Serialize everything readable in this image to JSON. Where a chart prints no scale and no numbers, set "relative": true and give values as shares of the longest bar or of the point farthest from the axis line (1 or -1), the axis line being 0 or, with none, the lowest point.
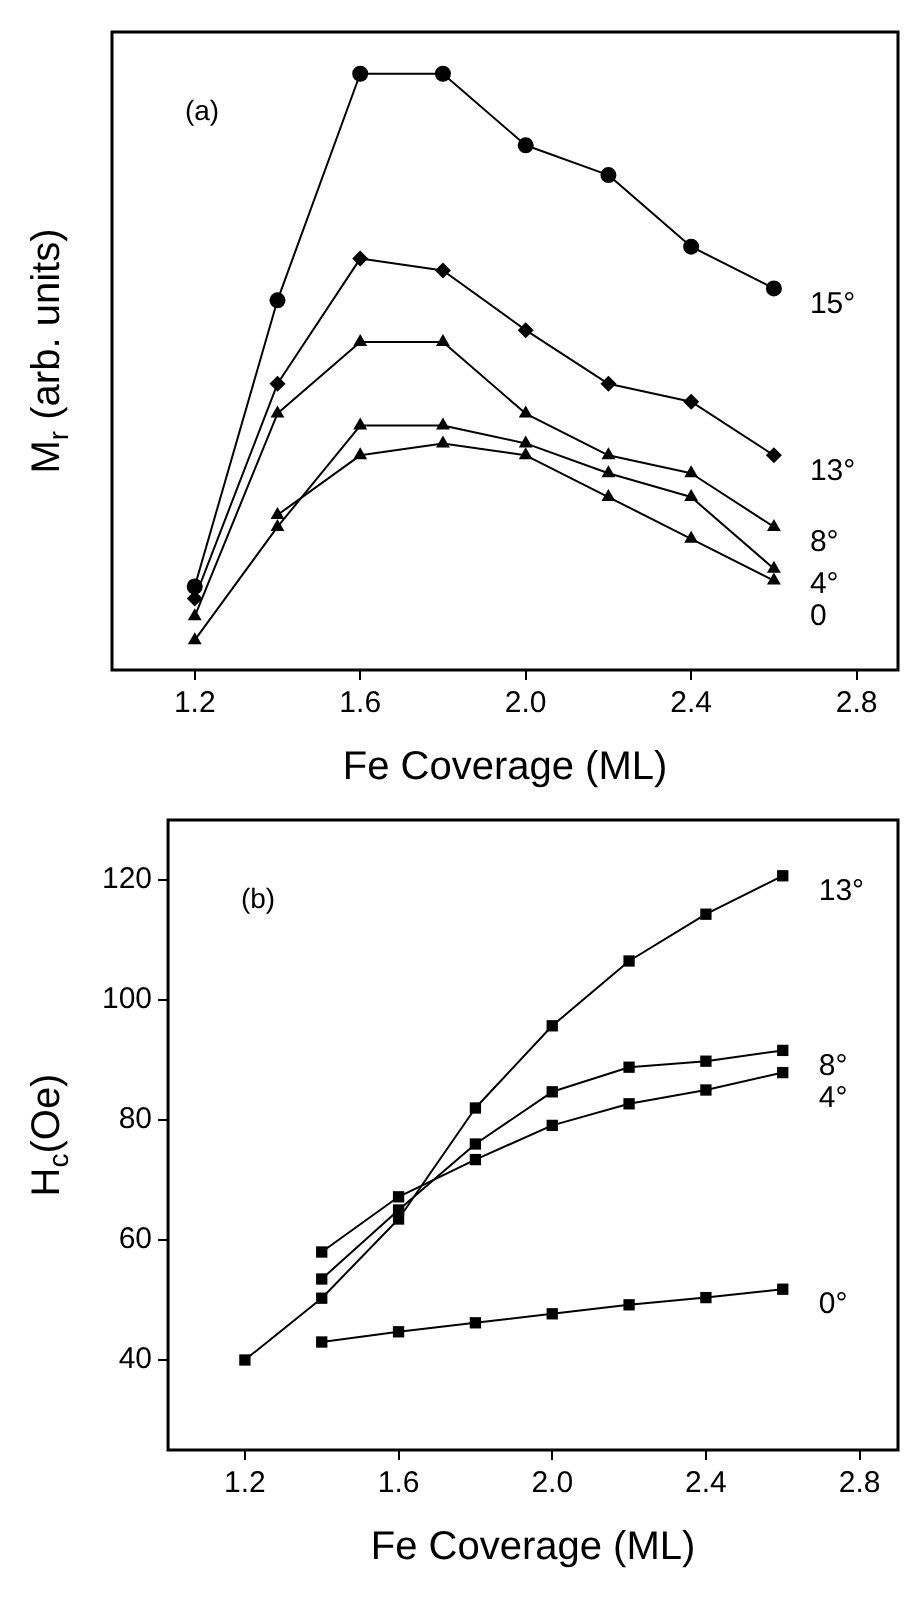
{
  "chart_data": [
    {
      "type": "line",
      "annotations": [
        "(a)"
      ],
      "xlabel": "Fe Coverage (ML)",
      "ylabel": "M$_{r}$ (arb. units)",
      "relative": true,
      "tick_labels": "x",
      "grid": false,
      "legend": false,
      "xlim": [
        1.0,
        2.9
      ],
      "xticks": [
        1.2,
        1.6,
        {
          "value": 2,
          "label": "2.0"
        },
        2.4,
        2.8
      ],
      "x": [
        1.2,
        1.4,
        1.6,
        1.8,
        2.0,
        2.2,
        2.4,
        2.6
      ],
      "series": [
        {
          "name": "15°",
          "color": "#000000",
          "marker": "circle",
          "values": [
            0.14,
            0.62,
            1,
            1,
            0.88,
            0.83,
            0.71,
            0.64
          ]
        },
        {
          "name": "13°",
          "color": "#000000",
          "marker": "diamond",
          "values": [
            0.12,
            0.48,
            0.69,
            0.67,
            0.57,
            0.48,
            0.45,
            0.36
          ]
        },
        {
          "name": "8°",
          "color": "#000000",
          "marker": "triangle",
          "values": [
            0.09,
            0.43,
            0.55,
            0.55,
            0.43,
            0.36,
            0.33,
            0.24
          ]
        },
        {
          "name": "4°",
          "color": "#000000",
          "marker": "triangle",
          "values": [
            0.05,
            0.24,
            0.41,
            0.41,
            0.38,
            0.33,
            0.29,
            0.17
          ]
        },
        {
          "name": "0",
          "color": "#000000",
          "marker": "triangle",
          "values": [
            null,
            0.26,
            0.36,
            0.38,
            0.36,
            0.29,
            0.22,
            0.15
          ]
        }
      ]
    },
    {
      "type": "line",
      "annotations": [
        "(b)"
      ],
      "xlabel": "Fe Coverage (ML)",
      "ylabel": "H$_{c}$(Oe)",
      "grid": false,
      "legend": false,
      "marker": "square",
      "xlim": [
        1.0,
        2.9
      ],
      "xticks": [
        1.2,
        1.6,
        {
          "value": 2,
          "label": "2.0"
        },
        2.4,
        2.8
      ],
      "ylim": [
        25,
        130
      ],
      "yticks": [
        40,
        60,
        80,
        100,
        120
      ],
      "series": [
        {
          "name": "13°",
          "color": "#000000",
          "x": [
            1.2,
            1.4,
            1.6,
            1.8,
            2.0,
            2.2,
            2.4,
            2.6
          ],
          "values": [
            40,
            50.3,
            63.5,
            82,
            95.7,
            106.5,
            114.3,
            120.7
          ]
        },
        {
          "name": "8°",
          "color": "#000000",
          "x": [
            1.4,
            1.6,
            1.8,
            2.0,
            2.2,
            2.4,
            2.6
          ],
          "values": [
            53.5,
            65,
            76,
            84.7,
            88.8,
            89.8,
            91.6
          ]
        },
        {
          "name": "4°",
          "color": "#000000",
          "x": [
            1.4,
            1.6,
            1.8,
            2.0,
            2.2,
            2.4,
            2.6
          ],
          "values": [
            58,
            67.2,
            73.4,
            79.1,
            82.7,
            85,
            87.9
          ]
        },
        {
          "name": "0°",
          "color": "#000000",
          "x": [
            1.4,
            1.6,
            1.8,
            2.0,
            2.2,
            2.4,
            2.6
          ],
          "values": [
            43,
            44.7,
            46.2,
            47.7,
            49.2,
            50.4,
            51.8
          ]
        }
      ]
    }
  ]
}
